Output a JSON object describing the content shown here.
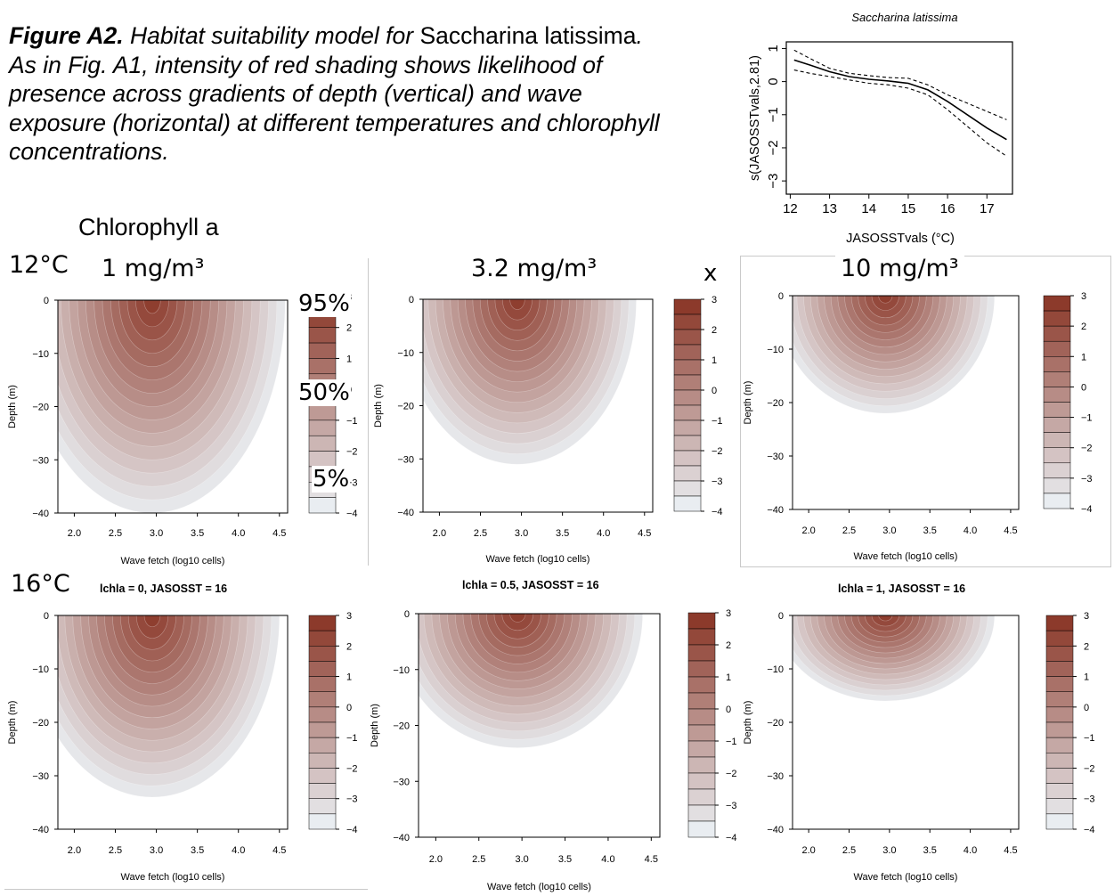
{
  "caption": {
    "label": "Figure A2.",
    "part1": " Habitat suitability model for ",
    "species1": "Saccharina latissima",
    "part2": ". As in Fig. A1, intensity of red shading shows likelihood of presence across gradients of depth (vertical) and wave exposure (horizontal) at different temperatures and chlorophyll concentrations."
  },
  "labels": {
    "chlorophyll_header": "Chlorophyll a",
    "col1": "1 mg/m³",
    "col2": "3.2 mg/m³",
    "col3": "10 mg/m³",
    "row1": "12°C",
    "row2": "16°C",
    "x_mark": "x",
    "sub_b1": "lchla = 0, JASOSST = 16",
    "sub_b2": "lchla = 0.5, JASOSST = 16",
    "sub_b3": "lchla = 1, JASOSST = 16"
  },
  "annotations": {
    "p95": "95%",
    "p50": "50%",
    "p5": "5%"
  },
  "colors": {
    "dark": "#8c3a2b",
    "light": "#eef6fb",
    "line": "#000000"
  },
  "chart_data": [
    {
      "type": "line",
      "title": "Saccharina latissima",
      "xlabel": "JASOSSTvals (°C)",
      "ylabel": "s(JASOSSTvals,2.81)",
      "xlim": [
        11.9,
        17.65
      ],
      "ylim": [
        -3.4,
        1.2
      ],
      "x_ticks": [
        12,
        13,
        14,
        15,
        16,
        17
      ],
      "y_ticks": [
        1,
        0,
        -1,
        -2,
        -3
      ],
      "series": [
        {
          "values_x": [
            12.1,
            12.5,
            13,
            13.5,
            14,
            14.5,
            15,
            15.5,
            16,
            16.5,
            17,
            17.5
          ],
          "values": [
            0.65,
            0.5,
            0.3,
            0.15,
            0.07,
            0.02,
            -0.05,
            -0.25,
            -0.6,
            -1.0,
            -1.4,
            -1.75
          ],
          "style": "solid"
        },
        {
          "values_x": [
            12.1,
            12.5,
            13,
            13.5,
            14,
            14.5,
            15,
            15.5,
            16,
            16.5,
            17,
            17.5
          ],
          "values": [
            0.95,
            0.7,
            0.4,
            0.25,
            0.18,
            0.12,
            0.1,
            -0.1,
            -0.4,
            -0.65,
            -0.9,
            -1.15
          ],
          "style": "dashed"
        },
        {
          "values_x": [
            12.1,
            12.5,
            13,
            13.5,
            14,
            14.5,
            15,
            15.5,
            16,
            16.5,
            17,
            17.5
          ],
          "values": [
            0.35,
            0.25,
            0.15,
            0.05,
            -0.05,
            -0.1,
            -0.2,
            -0.4,
            -0.85,
            -1.35,
            -1.85,
            -2.25
          ],
          "style": "dashed"
        }
      ]
    },
    {
      "type": "heatmap",
      "xlabel": "Wave fetch (log10 cells)",
      "ylabel": "Depth (m)",
      "xlim": [
        1.8,
        4.6
      ],
      "ylim": [
        -40,
        0
      ],
      "x_ticks": [
        "2.0",
        "2.5",
        "3.0",
        "3.5",
        "4.0",
        "4.5"
      ],
      "y_ticks": [
        "0",
        "-10",
        "-20",
        "-30",
        "-40"
      ],
      "legend_levels": [
        "3",
        "2",
        "1",
        "0",
        "-1",
        "-2",
        "-3",
        "-4"
      ],
      "peak": {
        "x": 2.95,
        "y": 0
      },
      "spread_x": 1.62,
      "spread_y": 40
    },
    {
      "type": "heatmap",
      "xlabel": "Wave fetch (log10 cells)",
      "ylabel": "Depth (m)",
      "xlim": [
        1.8,
        4.6
      ],
      "ylim": [
        -40,
        0
      ],
      "x_ticks": [
        "2.0",
        "2.5",
        "3.0",
        "3.5",
        "4.0",
        "4.5"
      ],
      "y_ticks": [
        "0",
        "-10",
        "-20",
        "-30",
        "-40"
      ],
      "legend_levels": [
        "3",
        "2",
        "1",
        "0",
        "-1",
        "-2",
        "-3",
        "-4"
      ],
      "peak": {
        "x": 2.95,
        "y": 0
      },
      "spread_x": 1.45,
      "spread_y": 31
    },
    {
      "type": "heatmap",
      "xlabel": "Wave fetch (log10 cells)",
      "ylabel": "Depth (m)",
      "xlim": [
        1.8,
        4.6
      ],
      "ylim": [
        -40,
        0
      ],
      "x_ticks": [
        "2.0",
        "2.5",
        "3.0",
        "3.5",
        "4.0",
        "4.5"
      ],
      "y_ticks": [
        "0",
        "-10",
        "-20",
        "-30",
        "-40"
      ],
      "legend_levels": [
        "3",
        "2",
        "1",
        "0",
        "-1",
        "-2",
        "-3",
        "-4"
      ],
      "peak": {
        "x": 2.95,
        "y": 0
      },
      "spread_x": 1.35,
      "spread_y": 22
    },
    {
      "type": "heatmap",
      "xlabel": "Wave fetch (log10 cells)",
      "ylabel": "Depth (m)",
      "xlim": [
        1.8,
        4.6
      ],
      "ylim": [
        -40,
        0
      ],
      "x_ticks": [
        "2.0",
        "2.5",
        "3.0",
        "3.5",
        "4.0",
        "4.5"
      ],
      "y_ticks": [
        "0",
        "-10",
        "-20",
        "-30",
        "-40"
      ],
      "legend_levels": [
        "3",
        "2",
        "1",
        "0",
        "-1",
        "-2",
        "-3",
        "-4"
      ],
      "peak": {
        "x": 2.95,
        "y": 0
      },
      "spread_x": 1.55,
      "spread_y": 34
    },
    {
      "type": "heatmap",
      "xlabel": "Wave fetch (log10 cells)",
      "ylabel": "Depth (m)",
      "xlim": [
        1.8,
        4.6
      ],
      "ylim": [
        -40,
        0
      ],
      "x_ticks": [
        "2.0",
        "2.5",
        "3.0",
        "3.5",
        "4.0",
        "4.5"
      ],
      "y_ticks": [
        "0",
        "-10",
        "-20",
        "-30",
        "-40"
      ],
      "legend_levels": [
        "3",
        "2",
        "1",
        "0",
        "-1",
        "-2",
        "-3",
        "-4"
      ],
      "peak": {
        "x": 2.95,
        "y": 0
      },
      "spread_x": 1.45,
      "spread_y": 24
    },
    {
      "type": "heatmap",
      "xlabel": "Wave fetch (log10 cells)",
      "ylabel": "Depth (m)",
      "xlim": [
        1.8,
        4.6
      ],
      "ylim": [
        -40,
        0
      ],
      "x_ticks": [
        "2.0",
        "2.5",
        "3.0",
        "3.5",
        "4.0",
        "4.5"
      ],
      "y_ticks": [
        "0",
        "-10",
        "-20",
        "-30",
        "-40"
      ],
      "legend_levels": [
        "3",
        "2",
        "1",
        "0",
        "-1",
        "-2",
        "-3",
        "-4"
      ],
      "peak": {
        "x": 2.95,
        "y": 0
      },
      "spread_x": 1.35,
      "spread_y": 16
    }
  ]
}
